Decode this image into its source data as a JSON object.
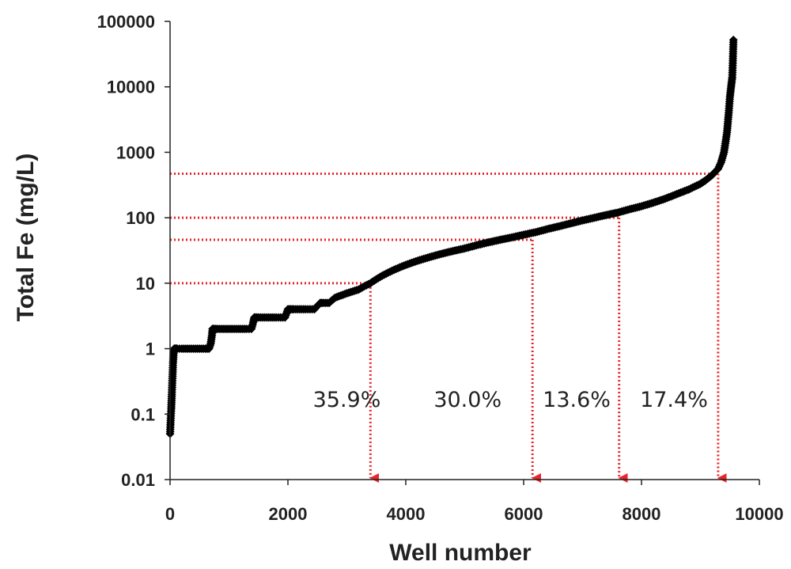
{
  "chart_data": {
    "type": "scatter",
    "xlabel": "Well number",
    "ylabel": "Total Fe (mg/L)",
    "xlim": [
      0,
      10000
    ],
    "ylim": [
      0.01,
      100000
    ],
    "y_scale": "log",
    "x_ticks": [
      "0",
      "2000",
      "4000",
      "6000",
      "8000",
      "10000"
    ],
    "y_ticks": [
      "0.01",
      "0.1",
      "1",
      "10",
      "100",
      "1000",
      "10000",
      "100000"
    ],
    "marker": "diamond",
    "marker_color": "#000000",
    "guide_color": "#e8262b",
    "series": [
      {
        "x": [
          0,
          10,
          20,
          30,
          40,
          50,
          60,
          70,
          80,
          90,
          100,
          110,
          120,
          200,
          300,
          400,
          500,
          600,
          660,
          690,
          710,
          720,
          730,
          750,
          800,
          900,
          1000,
          1100,
          1200,
          1300,
          1380,
          1410,
          1430,
          1450,
          1500,
          1600,
          1700,
          1800,
          1950,
          2000,
          2050,
          2100,
          2200,
          2300,
          2450,
          2500,
          2550,
          2600,
          2700,
          2750,
          2800,
          2900,
          3000,
          3100,
          3200,
          3300,
          3400,
          3500,
          3600,
          3700,
          3800,
          3900,
          4000,
          4200,
          4400,
          4600,
          4800,
          5000,
          5200,
          5400,
          5600,
          5800,
          6000,
          6200,
          6400,
          6600,
          6800,
          7000,
          7200,
          7400,
          7600,
          7800,
          8000,
          8200,
          8400,
          8600,
          8800,
          9000,
          9100,
          9200,
          9300,
          9350,
          9400,
          9450,
          9480,
          9500,
          9520,
          9540,
          9550,
          9560
        ],
        "y": [
          0.05,
          0.08,
          0.12,
          0.2,
          0.35,
          0.6,
          0.85,
          1,
          1,
          1,
          1,
          1,
          1,
          1,
          1,
          1,
          1,
          1,
          1,
          1.2,
          1.6,
          2,
          2,
          2,
          2,
          2,
          2,
          2,
          2,
          2,
          2,
          2.5,
          3,
          3,
          3,
          3,
          3,
          3,
          3,
          4,
          4,
          4,
          4,
          4,
          4,
          4.5,
          5,
          5,
          5,
          5.5,
          6,
          6.5,
          7,
          7.5,
          8,
          9,
          10,
          11.5,
          13,
          14.5,
          16,
          17.5,
          19,
          22,
          25,
          28,
          31,
          34,
          38,
          42,
          46,
          50,
          55,
          60,
          67,
          74,
          82,
          91,
          100,
          110,
          120,
          135,
          150,
          170,
          195,
          230,
          270,
          330,
          380,
          450,
          560,
          700,
          1000,
          2000,
          4000,
          7000,
          10000,
          14000,
          25000,
          52000
        ]
      }
    ],
    "guides": [
      {
        "y": 10,
        "x": 3400
      },
      {
        "y": 46,
        "x": 6150
      },
      {
        "y": 100,
        "x": 7620
      },
      {
        "y": 470,
        "x": 9300
      }
    ],
    "annotations": [
      {
        "text": "35.9%",
        "x": 3000,
        "y": 0.13
      },
      {
        "text": "30.0%",
        "x": 5050,
        "y": 0.13
      },
      {
        "text": "13.6%",
        "x": 6900,
        "y": 0.13
      },
      {
        "text": "17.4%",
        "x": 8550,
        "y": 0.13
      }
    ]
  }
}
